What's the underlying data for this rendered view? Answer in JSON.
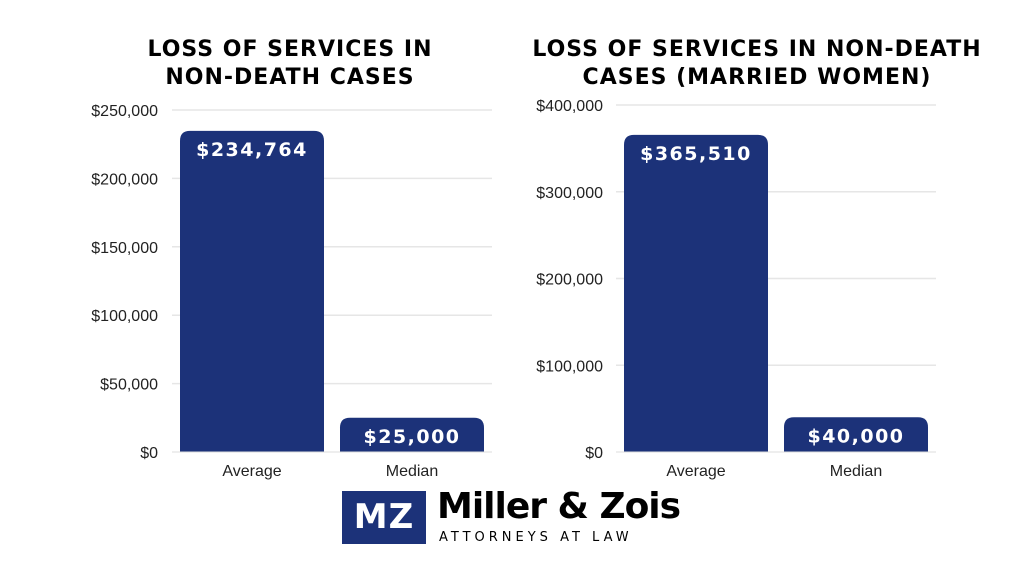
{
  "chart_data": [
    {
      "type": "bar",
      "title_lines": [
        "LOSS OF SERVICES IN",
        "NON-DEATH CASES"
      ],
      "categories": [
        "Average",
        "Median"
      ],
      "values": [
        234764,
        25000
      ],
      "data_labels": [
        "$234,764",
        "$25,000"
      ],
      "ylim": [
        0,
        250000
      ],
      "yticks": [
        0,
        50000,
        100000,
        150000,
        200000,
        250000
      ],
      "ytick_labels": [
        "$0",
        "$50,000",
        "$100,000",
        "$150,000",
        "$200,000",
        "$250,000"
      ],
      "grid": true,
      "bar_color": "#1c3279"
    },
    {
      "type": "bar",
      "title_lines": [
        "LOSS OF SERVICES IN NON-DEATH",
        "CASES (MARRIED WOMEN)"
      ],
      "categories": [
        "Average",
        "Median"
      ],
      "values": [
        365510,
        40000
      ],
      "data_labels": [
        "$365,510",
        "$40,000"
      ],
      "ylim": [
        0,
        400000
      ],
      "yticks": [
        0,
        100000,
        200000,
        300000,
        400000
      ],
      "ytick_labels": [
        "$0",
        "$100,000",
        "$200,000",
        "$300,000",
        "$400,000"
      ],
      "grid": true,
      "bar_color": "#1c3279"
    }
  ],
  "logo": {
    "mark": "MZ",
    "name": "Miller & Zois",
    "tagline": "ATTORNEYS AT LAW",
    "color": "#1c3279"
  }
}
